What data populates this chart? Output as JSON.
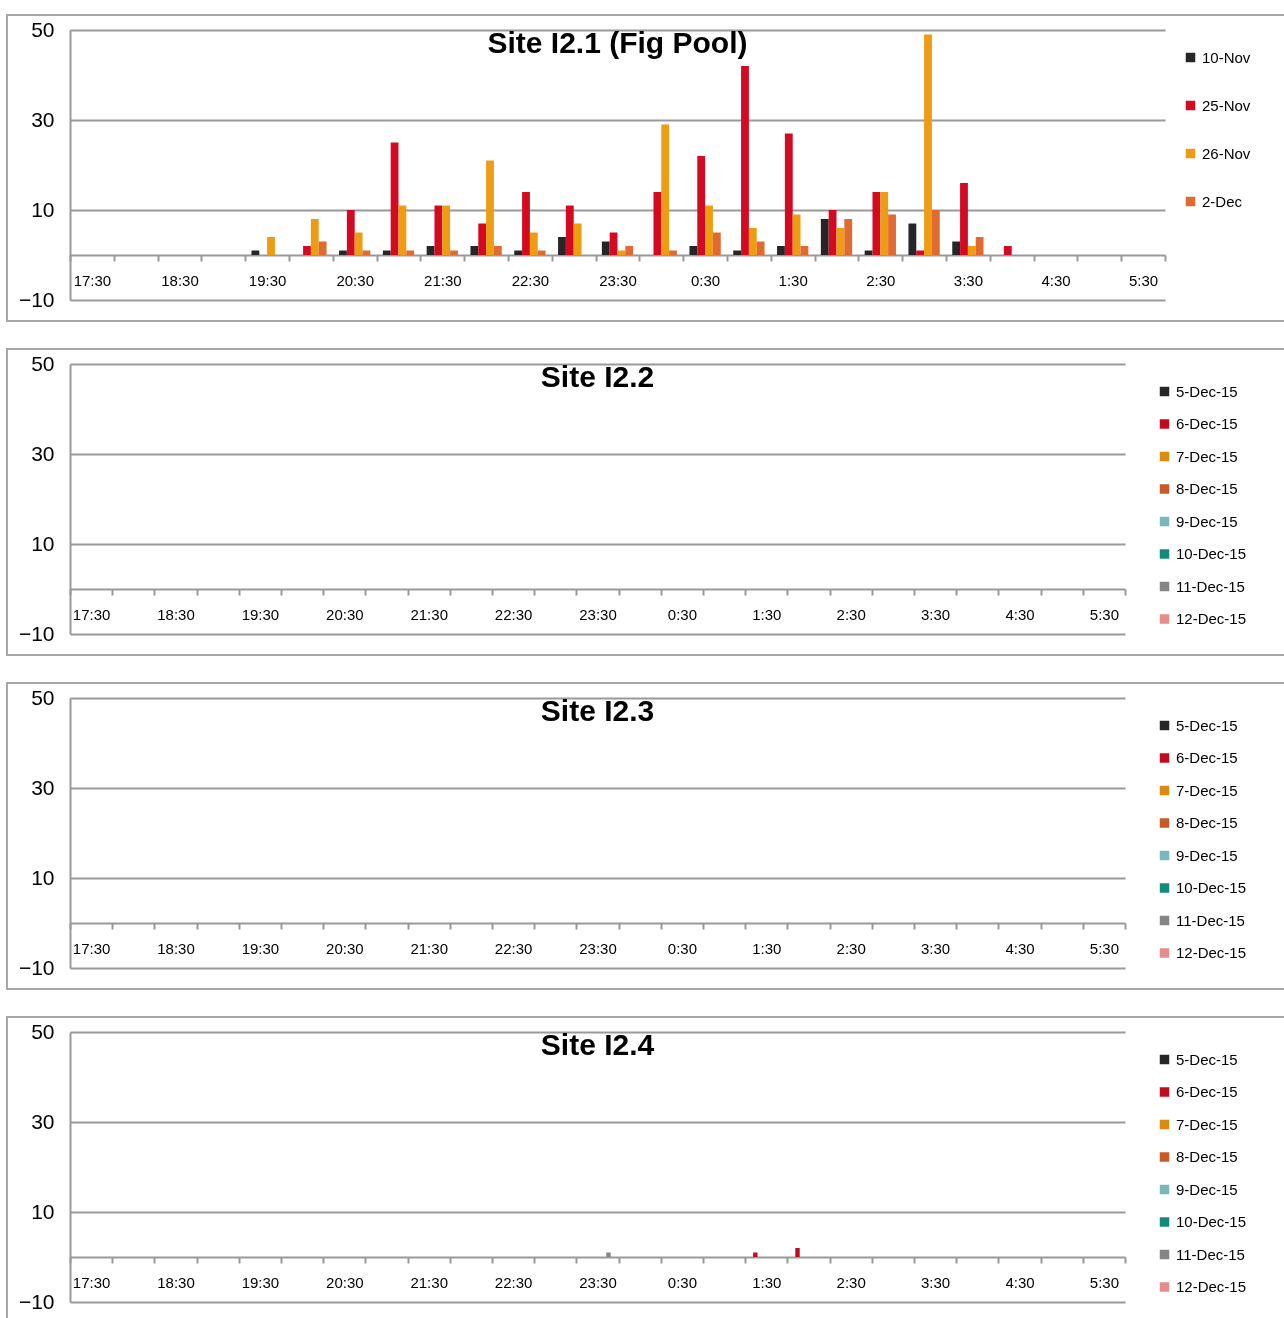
{
  "chart_data": [
    {
      "type": "bar",
      "title": "Site I2.1 (Fig Pool)",
      "categories": [
        "17:30",
        null,
        "18:30",
        null,
        "19:30",
        null,
        "20:30",
        null,
        "21:30",
        null,
        "22:30",
        null,
        "23:30",
        null,
        "0:30",
        null,
        "1:30",
        null,
        "2:30",
        null,
        "3:30",
        null,
        "4:30",
        null,
        "5:30"
      ],
      "ylim": [
        -10,
        50
      ],
      "yticks": [
        -10,
        10,
        30,
        50
      ],
      "grid": true,
      "legend": "right",
      "series": [
        {
          "name": "10-Nov",
          "color": "#262626",
          "values": [
            null,
            null,
            null,
            null,
            1,
            null,
            1,
            1,
            2,
            2,
            1,
            4,
            3,
            null,
            2,
            1,
            2,
            8,
            1,
            7,
            3,
            null,
            null,
            null,
            null
          ]
        },
        {
          "name": "25-Nov",
          "color": "#d40a22",
          "values": [
            null,
            null,
            null,
            null,
            null,
            2,
            10,
            25,
            11,
            7,
            14,
            11,
            5,
            14,
            22,
            42,
            27,
            10,
            14,
            1,
            16,
            2,
            null,
            null,
            null
          ]
        },
        {
          "name": "26-Nov",
          "color": "#ee9c12",
          "values": [
            null,
            null,
            null,
            null,
            4,
            8,
            5,
            11,
            11,
            21,
            5,
            7,
            1,
            29,
            11,
            6,
            9,
            6,
            14,
            49,
            2,
            null,
            null,
            null,
            null
          ]
        },
        {
          "name": "2-Dec",
          "color": "#e06a30",
          "values": [
            null,
            null,
            null,
            null,
            null,
            3,
            1,
            1,
            1,
            2,
            1,
            null,
            2,
            1,
            5,
            3,
            2,
            8,
            9,
            10,
            4,
            null,
            null,
            null,
            null
          ]
        }
      ]
    },
    {
      "type": "bar",
      "title": "Site I2.2",
      "categories": [
        "17:30",
        null,
        "18:30",
        null,
        "19:30",
        null,
        "20:30",
        null,
        "21:30",
        null,
        "22:30",
        null,
        "23:30",
        null,
        "0:30",
        null,
        "1:30",
        null,
        "2:30",
        null,
        "3:30",
        null,
        "4:30",
        null,
        "5:30"
      ],
      "ylim": [
        -10,
        50
      ],
      "yticks": [
        -10,
        10,
        30,
        50
      ],
      "grid": true,
      "legend": "right",
      "series": [
        {
          "name": "5-Dec-15",
          "color": "#262626",
          "values": [
            null,
            null,
            null,
            null,
            null,
            null,
            null,
            null,
            null,
            null,
            null,
            null,
            null,
            null,
            null,
            null,
            null,
            null,
            null,
            null,
            null,
            null,
            null,
            null,
            null
          ]
        },
        {
          "name": "6-Dec-15",
          "color": "#c00d1e",
          "values": [
            null,
            null,
            null,
            null,
            null,
            null,
            null,
            null,
            null,
            null,
            null,
            null,
            null,
            null,
            null,
            null,
            null,
            null,
            null,
            null,
            null,
            null,
            null,
            null,
            null
          ]
        },
        {
          "name": "7-Dec-15",
          "color": "#d98b12",
          "values": [
            null,
            null,
            null,
            null,
            null,
            null,
            null,
            null,
            null,
            null,
            null,
            null,
            null,
            null,
            null,
            null,
            null,
            null,
            null,
            null,
            null,
            null,
            null,
            null,
            null
          ]
        },
        {
          "name": "8-Dec-15",
          "color": "#c65a28",
          "values": [
            null,
            null,
            null,
            null,
            null,
            null,
            null,
            null,
            null,
            null,
            null,
            null,
            null,
            null,
            null,
            null,
            null,
            null,
            null,
            null,
            null,
            null,
            null,
            null,
            null
          ]
        },
        {
          "name": "9-Dec-15",
          "color": "#79b7b9",
          "values": [
            null,
            null,
            null,
            null,
            null,
            null,
            null,
            null,
            null,
            null,
            null,
            null,
            null,
            null,
            null,
            null,
            null,
            null,
            null,
            null,
            null,
            null,
            null,
            null,
            null
          ]
        },
        {
          "name": "10-Dec-15",
          "color": "#148a7a",
          "values": [
            null,
            null,
            null,
            null,
            null,
            null,
            null,
            null,
            null,
            null,
            null,
            null,
            null,
            null,
            null,
            null,
            null,
            null,
            null,
            null,
            null,
            null,
            null,
            null,
            null
          ]
        },
        {
          "name": "11-Dec-15",
          "color": "#858585",
          "values": [
            null,
            null,
            null,
            null,
            null,
            null,
            null,
            null,
            null,
            null,
            null,
            null,
            null,
            null,
            null,
            null,
            null,
            null,
            null,
            null,
            null,
            null,
            null,
            null,
            null
          ]
        },
        {
          "name": "12-Dec-15",
          "color": "#e58c8c",
          "values": [
            null,
            null,
            null,
            null,
            null,
            null,
            null,
            null,
            null,
            null,
            null,
            null,
            null,
            null,
            null,
            null,
            null,
            null,
            null,
            null,
            null,
            null,
            null,
            null,
            null
          ]
        }
      ]
    },
    {
      "type": "bar",
      "title": "Site I2.3",
      "categories": [
        "17:30",
        null,
        "18:30",
        null,
        "19:30",
        null,
        "20:30",
        null,
        "21:30",
        null,
        "22:30",
        null,
        "23:30",
        null,
        "0:30",
        null,
        "1:30",
        null,
        "2:30",
        null,
        "3:30",
        null,
        "4:30",
        null,
        "5:30"
      ],
      "ylim": [
        -10,
        50
      ],
      "yticks": [
        -10,
        10,
        30,
        50
      ],
      "grid": true,
      "legend": "right",
      "series": [
        {
          "name": "5-Dec-15",
          "color": "#262626",
          "values": [
            null,
            null,
            null,
            null,
            null,
            null,
            null,
            null,
            null,
            null,
            null,
            null,
            null,
            null,
            null,
            null,
            null,
            null,
            null,
            null,
            null,
            null,
            null,
            null,
            null
          ]
        },
        {
          "name": "6-Dec-15",
          "color": "#c00d1e",
          "values": [
            null,
            null,
            null,
            null,
            null,
            null,
            null,
            null,
            null,
            null,
            null,
            null,
            null,
            null,
            null,
            null,
            null,
            null,
            null,
            null,
            null,
            null,
            null,
            null,
            null
          ]
        },
        {
          "name": "7-Dec-15",
          "color": "#d98b12",
          "values": [
            null,
            null,
            null,
            null,
            null,
            null,
            null,
            null,
            null,
            null,
            null,
            null,
            null,
            null,
            null,
            null,
            null,
            null,
            null,
            null,
            null,
            null,
            null,
            null,
            null
          ]
        },
        {
          "name": "8-Dec-15",
          "color": "#c65a28",
          "values": [
            null,
            null,
            null,
            null,
            null,
            null,
            null,
            null,
            null,
            null,
            null,
            null,
            null,
            null,
            null,
            null,
            null,
            null,
            null,
            null,
            null,
            null,
            null,
            null,
            null
          ]
        },
        {
          "name": "9-Dec-15",
          "color": "#79b7b9",
          "values": [
            null,
            null,
            null,
            null,
            null,
            null,
            null,
            null,
            null,
            null,
            null,
            null,
            null,
            null,
            null,
            null,
            null,
            null,
            null,
            null,
            null,
            null,
            null,
            null,
            null
          ]
        },
        {
          "name": "10-Dec-15",
          "color": "#148a7a",
          "values": [
            null,
            null,
            null,
            null,
            null,
            null,
            null,
            null,
            null,
            null,
            null,
            null,
            null,
            null,
            null,
            null,
            null,
            null,
            null,
            null,
            null,
            null,
            null,
            null,
            null
          ]
        },
        {
          "name": "11-Dec-15",
          "color": "#858585",
          "values": [
            null,
            null,
            null,
            null,
            null,
            null,
            null,
            null,
            null,
            null,
            null,
            null,
            null,
            null,
            null,
            null,
            null,
            null,
            null,
            null,
            null,
            null,
            null,
            null,
            null
          ]
        },
        {
          "name": "12-Dec-15",
          "color": "#e58c8c",
          "values": [
            null,
            null,
            null,
            null,
            null,
            null,
            null,
            null,
            null,
            null,
            null,
            null,
            null,
            null,
            null,
            null,
            null,
            null,
            null,
            null,
            null,
            null,
            null,
            null,
            null
          ]
        }
      ]
    },
    {
      "type": "bar",
      "title": "Site I2.4",
      "categories": [
        "17:30",
        null,
        "18:30",
        null,
        "19:30",
        null,
        "20:30",
        null,
        "21:30",
        null,
        "22:30",
        null,
        "23:30",
        null,
        "0:30",
        null,
        "1:30",
        null,
        "2:30",
        null,
        "3:30",
        null,
        "4:30",
        null,
        "5:30"
      ],
      "ylim": [
        -10,
        50
      ],
      "yticks": [
        -10,
        10,
        30,
        50
      ],
      "grid": true,
      "legend": "right",
      "series": [
        {
          "name": "5-Dec-15",
          "color": "#262626",
          "values": [
            null,
            null,
            null,
            null,
            null,
            null,
            null,
            null,
            null,
            null,
            null,
            null,
            null,
            null,
            null,
            null,
            null,
            null,
            null,
            null,
            null,
            null,
            null,
            null,
            null
          ]
        },
        {
          "name": "6-Dec-15",
          "color": "#c00d1e",
          "values": [
            null,
            null,
            null,
            null,
            null,
            null,
            null,
            null,
            null,
            null,
            null,
            null,
            null,
            null,
            null,
            null,
            1,
            2,
            null,
            null,
            null,
            null,
            null,
            null,
            null
          ]
        },
        {
          "name": "7-Dec-15",
          "color": "#d98b12",
          "values": [
            null,
            null,
            null,
            null,
            null,
            null,
            null,
            null,
            null,
            null,
            null,
            null,
            null,
            null,
            null,
            null,
            null,
            null,
            null,
            null,
            null,
            null,
            null,
            null,
            null
          ]
        },
        {
          "name": "8-Dec-15",
          "color": "#c65a28",
          "values": [
            null,
            null,
            null,
            null,
            null,
            null,
            null,
            null,
            null,
            null,
            null,
            null,
            null,
            null,
            null,
            null,
            null,
            null,
            null,
            null,
            null,
            null,
            null,
            null,
            null
          ]
        },
        {
          "name": "9-Dec-15",
          "color": "#79b7b9",
          "values": [
            null,
            null,
            null,
            null,
            null,
            null,
            null,
            null,
            null,
            null,
            null,
            null,
            null,
            null,
            null,
            null,
            null,
            null,
            null,
            null,
            null,
            null,
            null,
            null,
            null
          ]
        },
        {
          "name": "10-Dec-15",
          "color": "#148a7a",
          "values": [
            null,
            null,
            null,
            null,
            null,
            null,
            null,
            null,
            null,
            null,
            null,
            null,
            null,
            null,
            null,
            null,
            null,
            null,
            null,
            null,
            null,
            null,
            null,
            null,
            null
          ]
        },
        {
          "name": "11-Dec-15",
          "color": "#858585",
          "values": [
            null,
            null,
            null,
            null,
            null,
            null,
            null,
            null,
            null,
            null,
            null,
            null,
            1,
            null,
            null,
            null,
            null,
            null,
            null,
            null,
            null,
            null,
            null,
            null,
            null
          ]
        },
        {
          "name": "12-Dec-15",
          "color": "#e58c8c",
          "values": [
            null,
            null,
            null,
            null,
            null,
            null,
            null,
            null,
            null,
            null,
            null,
            null,
            null,
            null,
            null,
            null,
            null,
            null,
            null,
            null,
            null,
            null,
            null,
            null,
            null
          ]
        }
      ]
    }
  ]
}
